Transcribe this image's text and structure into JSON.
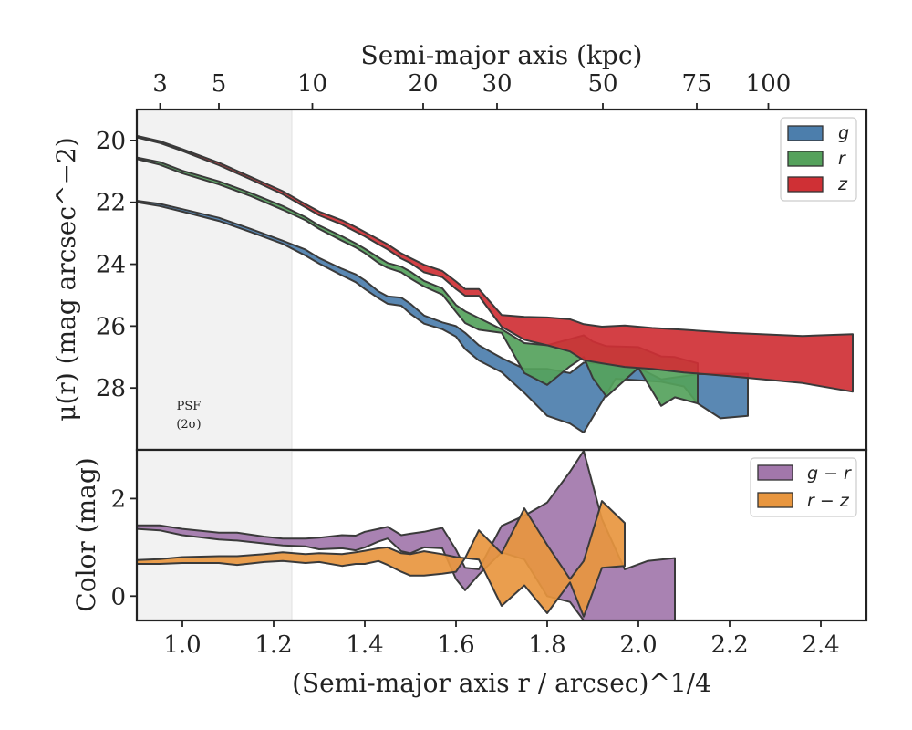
{
  "chart_data": [
    {
      "type": "area",
      "panel": "surface-brightness",
      "title": "",
      "xlabel": "(Semi-major axis r / arcsec)^1/4",
      "ylabel": "μ(r) (mag arcsec^−2)",
      "top_xlabel": "Semi-major axis (kpc)",
      "xlim": [
        0.9,
        2.5
      ],
      "ylim": [
        30,
        19
      ],
      "y_inverted": true,
      "yticks": [
        20,
        22,
        24,
        26,
        28
      ],
      "xticks": [
        1.0,
        1.2,
        1.4,
        1.6,
        1.8,
        2.0,
        2.2,
        2.4
      ],
      "top_ticks": [
        {
          "label": "3",
          "x": 0.951
        },
        {
          "label": "5",
          "x": 1.08
        },
        {
          "label": "10",
          "x": 1.285
        },
        {
          "label": "20",
          "x": 1.528
        },
        {
          "label": "30",
          "x": 1.69
        },
        {
          "label": "50",
          "x": 1.922
        },
        {
          "label": "75",
          "x": 2.128
        },
        {
          "label": "100",
          "x": 2.285
        }
      ],
      "shaded_region": {
        "x": [
          0.9,
          1.24
        ],
        "label": "PSF",
        "sublabel": "(2σ)"
      },
      "grid": false,
      "legend_position": "top-right",
      "colors": {
        "g": "#4c7eac",
        "r": "#55a25c",
        "z": "#cf3035"
      },
      "series": [
        {
          "name": "g",
          "x": [
            0.9,
            0.95,
            1.0,
            1.08,
            1.15,
            1.22,
            1.27,
            1.3,
            1.35,
            1.38,
            1.4,
            1.43,
            1.45,
            1.48,
            1.5,
            1.53,
            1.57,
            1.6,
            1.62,
            1.65,
            1.7,
            1.75,
            1.8,
            1.85,
            1.88,
            1.95,
            2.0,
            2.05,
            2.1,
            2.13,
            2.18,
            2.24
          ],
          "y_upper": [
            21.95,
            22.05,
            22.22,
            22.5,
            22.86,
            23.24,
            23.53,
            23.8,
            24.15,
            24.33,
            24.52,
            24.88,
            25.04,
            25.08,
            25.28,
            25.66,
            25.88,
            26.0,
            26.22,
            26.62,
            27.03,
            27.38,
            27.38,
            27.52,
            27.18,
            27.25,
            27.35,
            27.72,
            27.62,
            27.55,
            27.54,
            27.54
          ],
          "y_lower": [
            22.0,
            22.12,
            22.3,
            22.6,
            22.96,
            23.34,
            23.72,
            23.98,
            24.36,
            24.58,
            24.8,
            25.1,
            25.28,
            25.34,
            25.6,
            25.92,
            26.1,
            26.34,
            26.74,
            27.11,
            27.49,
            28.16,
            28.9,
            29.15,
            29.44,
            27.7,
            27.75,
            27.8,
            27.95,
            28.5,
            28.98,
            28.9
          ]
        },
        {
          "name": "r",
          "x": [
            0.9,
            0.95,
            1.0,
            1.08,
            1.15,
            1.22,
            1.27,
            1.3,
            1.35,
            1.38,
            1.4,
            1.43,
            1.45,
            1.48,
            1.5,
            1.53,
            1.57,
            1.6,
            1.62,
            1.65,
            1.7,
            1.75,
            1.8,
            1.85,
            1.88,
            1.9,
            1.93,
            2.0,
            2.05,
            2.08,
            2.13
          ],
          "y_upper": [
            20.55,
            20.7,
            20.98,
            21.32,
            21.7,
            22.12,
            22.48,
            22.75,
            23.1,
            23.33,
            23.5,
            23.78,
            23.96,
            24.08,
            24.24,
            24.54,
            24.78,
            25.32,
            25.52,
            25.74,
            26.1,
            26.55,
            26.62,
            26.42,
            26.3,
            26.5,
            26.65,
            26.68,
            26.98,
            27.0,
            27.2
          ],
          "y_lower": [
            20.6,
            20.78,
            21.06,
            21.42,
            21.8,
            22.24,
            22.58,
            22.86,
            23.24,
            23.46,
            23.64,
            23.96,
            24.12,
            24.26,
            24.46,
            24.72,
            24.98,
            25.54,
            25.9,
            26.12,
            26.22,
            27.52,
            27.9,
            27.3,
            27.0,
            27.68,
            28.28,
            27.35,
            28.58,
            28.3,
            28.5
          ]
        },
        {
          "name": "z",
          "x": [
            0.9,
            0.95,
            1.0,
            1.08,
            1.15,
            1.22,
            1.27,
            1.3,
            1.35,
            1.38,
            1.4,
            1.43,
            1.45,
            1.48,
            1.5,
            1.53,
            1.57,
            1.6,
            1.62,
            1.65,
            1.7,
            1.75,
            1.8,
            1.85,
            1.88,
            1.92,
            1.97,
            2.03,
            2.1,
            2.2,
            2.36,
            2.47
          ],
          "y_upper": [
            19.85,
            20.02,
            20.28,
            20.72,
            21.18,
            21.64,
            22.06,
            22.3,
            22.58,
            22.8,
            22.96,
            23.2,
            23.36,
            23.65,
            23.8,
            24.02,
            24.22,
            24.56,
            24.8,
            24.8,
            25.64,
            25.7,
            25.72,
            25.78,
            25.94,
            26.02,
            25.98,
            26.06,
            26.12,
            26.22,
            26.32,
            26.26
          ],
          "y_lower": [
            19.9,
            20.08,
            20.34,
            20.8,
            21.26,
            21.74,
            22.16,
            22.42,
            22.72,
            22.95,
            23.1,
            23.36,
            23.52,
            23.82,
            23.96,
            24.26,
            24.42,
            24.8,
            25.02,
            25.02,
            26.02,
            26.44,
            26.62,
            26.82,
            27.1,
            27.2,
            27.32,
            27.38,
            27.5,
            27.62,
            27.84,
            28.12
          ]
        }
      ]
    },
    {
      "type": "area",
      "panel": "color",
      "title": "",
      "xlabel": "(Semi-major axis r / arcsec)^1/4",
      "ylabel": "Color (mag)",
      "xlim": [
        0.9,
        2.5
      ],
      "ylim": [
        -0.5,
        3.0
      ],
      "yticks": [
        0,
        2
      ],
      "xticks": [
        1.0,
        1.2,
        1.4,
        1.6,
        1.8,
        2.0,
        2.2,
        2.4
      ],
      "grid": false,
      "legend_position": "top-right",
      "colors": {
        "g-r": "#a277ab",
        "r-z": "#e8963f"
      },
      "series": [
        {
          "name": "g − r",
          "x": [
            0.9,
            0.95,
            1.0,
            1.08,
            1.12,
            1.18,
            1.22,
            1.27,
            1.3,
            1.35,
            1.38,
            1.4,
            1.43,
            1.45,
            1.48,
            1.5,
            1.53,
            1.57,
            1.6,
            1.62,
            1.65,
            1.7,
            1.75,
            1.8,
            1.85,
            1.88,
            1.92,
            1.97,
            2.02,
            2.08
          ],
          "y_upper": [
            1.45,
            1.45,
            1.38,
            1.3,
            1.3,
            1.22,
            1.18,
            1.18,
            1.2,
            1.25,
            1.24,
            1.32,
            1.38,
            1.42,
            1.25,
            1.28,
            1.32,
            1.4,
            0.95,
            0.58,
            0.55,
            1.44,
            1.65,
            1.92,
            2.55,
            2.98,
            1.58,
            0.55,
            0.72,
            0.78
          ],
          "y_lower": [
            1.38,
            1.35,
            1.25,
            1.16,
            1.14,
            1.08,
            1.04,
            1.02,
            0.96,
            0.98,
            0.94,
            1.0,
            1.12,
            1.18,
            0.92,
            0.88,
            1.0,
            0.98,
            0.35,
            0.12,
            0.44,
            0.9,
            0.75,
            0.0,
            -0.12,
            -0.5,
            -0.5,
            -0.5,
            -0.5,
            -0.5
          ]
        },
        {
          "name": "r − z",
          "x": [
            0.9,
            0.95,
            1.0,
            1.08,
            1.12,
            1.18,
            1.22,
            1.27,
            1.3,
            1.35,
            1.38,
            1.4,
            1.43,
            1.45,
            1.48,
            1.5,
            1.53,
            1.57,
            1.6,
            1.62,
            1.65,
            1.7,
            1.75,
            1.8,
            1.85,
            1.88,
            1.92,
            1.97
          ],
          "y_upper": [
            0.74,
            0.76,
            0.8,
            0.82,
            0.82,
            0.86,
            0.9,
            0.86,
            0.88,
            0.86,
            0.9,
            0.93,
            0.98,
            1.0,
            0.88,
            0.86,
            0.92,
            0.86,
            0.8,
            0.78,
            1.35,
            0.88,
            1.8,
            1.05,
            0.35,
            0.72,
            1.95,
            1.5
          ],
          "y_lower": [
            0.66,
            0.66,
            0.68,
            0.68,
            0.64,
            0.7,
            0.72,
            0.68,
            0.7,
            0.62,
            0.66,
            0.66,
            0.72,
            0.64,
            0.5,
            0.42,
            0.42,
            0.46,
            0.5,
            0.78,
            0.75,
            -0.2,
            0.22,
            -0.35,
            0.28,
            -0.42,
            0.58,
            0.62
          ]
        }
      ]
    }
  ]
}
